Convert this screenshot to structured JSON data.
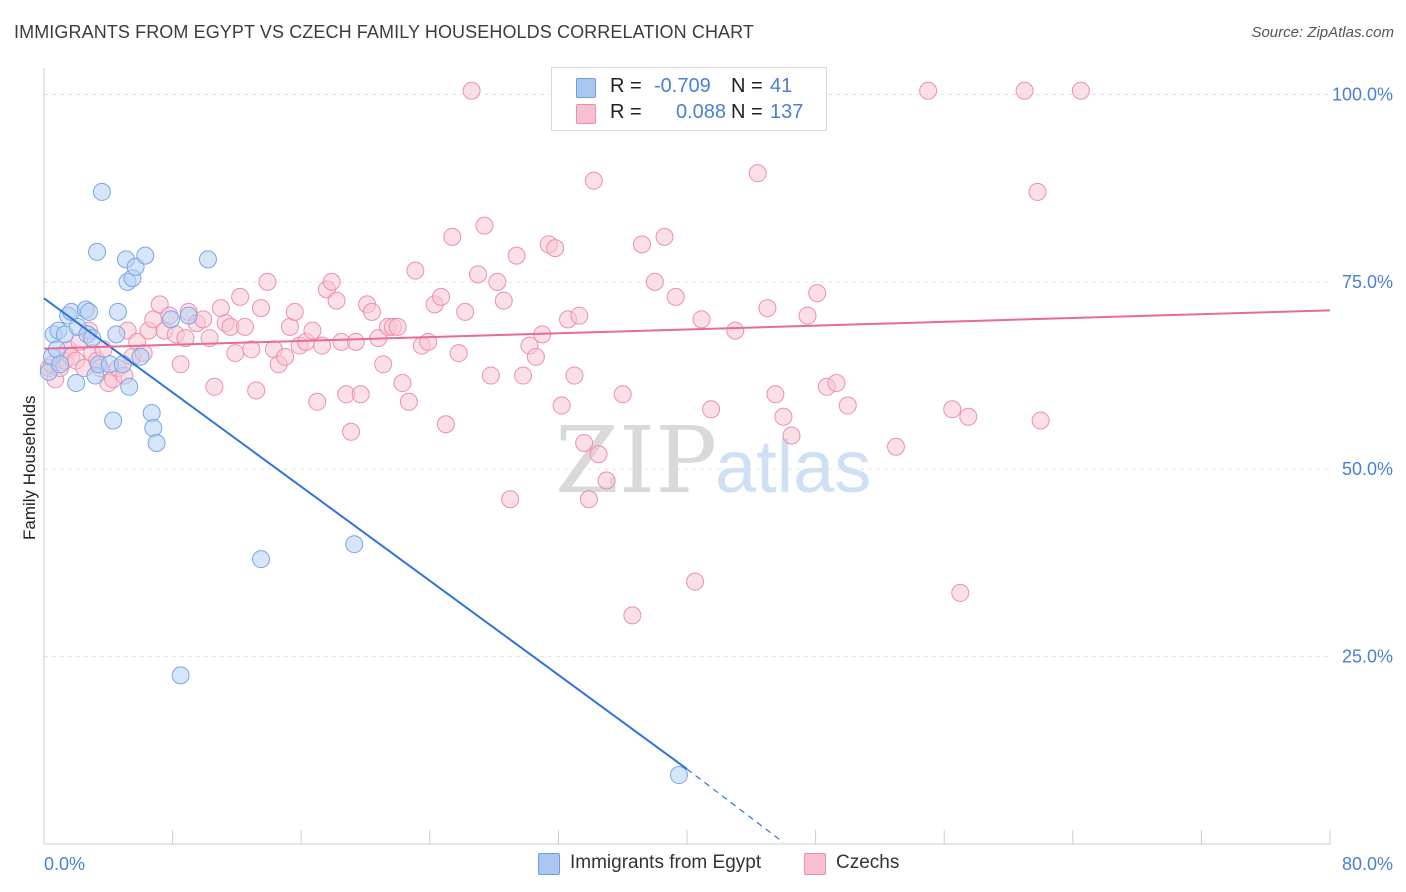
{
  "title": "IMMIGRANTS FROM EGYPT VS CZECH FAMILY HOUSEHOLDS CORRELATION CHART",
  "source": "Source: ZipAtlas.com",
  "watermark": {
    "zip": "ZIP",
    "atlas": "atlas"
  },
  "legend_top": {
    "rows": [
      {
        "r_label": "R =",
        "r_value": "-0.709",
        "n_label": "N =",
        "n_value": "41",
        "color": "#a9c6f0",
        "border": "#6f9ee0"
      },
      {
        "r_label": "R =",
        "r_value": "0.088",
        "n_label": "N =",
        "n_value": "137",
        "color": "#f7bfd0",
        "border": "#ec8fab"
      }
    ]
  },
  "legend_bottom": [
    {
      "label": "Immigrants from Egypt",
      "color": "#a9c6f0",
      "border": "#6f9ee0"
    },
    {
      "label": "Czechs",
      "color": "#f7bfd0",
      "border": "#ec8fab"
    }
  ],
  "chart_data": {
    "type": "scatter",
    "ylabel": "Family Households",
    "x_tick_labels": [
      "0.0%",
      "80.0%"
    ],
    "y_tick_labels": [
      "25.0%",
      "50.0%",
      "75.0%",
      "100.0%"
    ],
    "xlim": [
      0,
      80
    ],
    "ylim": [
      0,
      103
    ],
    "grid": true,
    "series": [
      {
        "name": "Immigrants from Egypt",
        "color": "#7aa7e6",
        "fill": "#b7d0f3",
        "line_color": "#2f74d8",
        "trend": {
          "x0": 0,
          "y0": 72.8,
          "x1": 40,
          "y1": 10.0,
          "dash_to_x": 46,
          "dash_to_y": 0.2
        },
        "points": [
          [
            0.3,
            63.0
          ],
          [
            0.5,
            65.0
          ],
          [
            0.6,
            68.0
          ],
          [
            0.8,
            66.0
          ],
          [
            0.9,
            68.5
          ],
          [
            1.0,
            64.0
          ],
          [
            1.3,
            68.0
          ],
          [
            1.5,
            70.5
          ],
          [
            1.7,
            71.0
          ],
          [
            2.0,
            61.5
          ],
          [
            2.1,
            69.0
          ],
          [
            2.6,
            71.3
          ],
          [
            2.7,
            68.0
          ],
          [
            2.8,
            71.0
          ],
          [
            3.0,
            67.5
          ],
          [
            3.2,
            62.5
          ],
          [
            3.3,
            79.0
          ],
          [
            3.4,
            64.0
          ],
          [
            3.6,
            87.0
          ],
          [
            4.1,
            64.0
          ],
          [
            4.3,
            56.5
          ],
          [
            4.5,
            68.0
          ],
          [
            4.6,
            71.0
          ],
          [
            4.9,
            64.0
          ],
          [
            5.1,
            78.0
          ],
          [
            5.2,
            75.0
          ],
          [
            5.3,
            61.0
          ],
          [
            5.5,
            75.5
          ],
          [
            5.7,
            77.0
          ],
          [
            6.0,
            65.0
          ],
          [
            6.3,
            78.5
          ],
          [
            6.7,
            57.5
          ],
          [
            6.8,
            55.5
          ],
          [
            7.0,
            53.5
          ],
          [
            7.9,
            70.0
          ],
          [
            8.5,
            22.5
          ],
          [
            9.0,
            70.5
          ],
          [
            10.2,
            78.0
          ],
          [
            13.5,
            38.0
          ],
          [
            19.3,
            40.0
          ],
          [
            39.5,
            9.2
          ]
        ]
      },
      {
        "name": "Czechs",
        "color": "#ec90ad",
        "fill": "#f8c4d4",
        "line_color": "#e76b96",
        "trend": {
          "x0": 0,
          "y0": 66.1,
          "x1": 80,
          "y1": 71.2
        },
        "points": [
          [
            0.3,
            63.5
          ],
          [
            0.5,
            64.0
          ],
          [
            0.7,
            62.0
          ],
          [
            1.0,
            63.5
          ],
          [
            1.3,
            64.5
          ],
          [
            1.5,
            66.0
          ],
          [
            1.7,
            65.0
          ],
          [
            2.0,
            64.5
          ],
          [
            2.2,
            67.0
          ],
          [
            2.5,
            63.5
          ],
          [
            2.8,
            68.5
          ],
          [
            3.0,
            65.5
          ],
          [
            3.3,
            64.5
          ],
          [
            3.5,
            63.5
          ],
          [
            3.7,
            66.0
          ],
          [
            4.0,
            61.5
          ],
          [
            4.3,
            62.0
          ],
          [
            4.6,
            63.5
          ],
          [
            5.0,
            62.5
          ],
          [
            5.2,
            68.5
          ],
          [
            5.5,
            65.0
          ],
          [
            5.8,
            67.0
          ],
          [
            6.2,
            65.5
          ],
          [
            6.5,
            68.5
          ],
          [
            6.8,
            70.0
          ],
          [
            7.2,
            72.0
          ],
          [
            7.5,
            68.5
          ],
          [
            7.8,
            70.5
          ],
          [
            8.2,
            68.0
          ],
          [
            8.5,
            64.0
          ],
          [
            8.8,
            67.5
          ],
          [
            9.0,
            71.0
          ],
          [
            9.5,
            69.5
          ],
          [
            9.9,
            70.0
          ],
          [
            10.3,
            67.5
          ],
          [
            10.6,
            61.0
          ],
          [
            11.0,
            71.5
          ],
          [
            11.3,
            69.5
          ],
          [
            11.6,
            69.0
          ],
          [
            11.9,
            65.5
          ],
          [
            12.2,
            73.0
          ],
          [
            12.5,
            69.0
          ],
          [
            12.9,
            66.0
          ],
          [
            13.2,
            60.5
          ],
          [
            13.5,
            71.5
          ],
          [
            13.9,
            75.0
          ],
          [
            14.3,
            66.0
          ],
          [
            14.6,
            64.0
          ],
          [
            15.0,
            65.0
          ],
          [
            15.3,
            69.0
          ],
          [
            15.6,
            71.0
          ],
          [
            15.9,
            66.5
          ],
          [
            16.3,
            67.0
          ],
          [
            16.7,
            68.5
          ],
          [
            17.0,
            59.0
          ],
          [
            17.3,
            66.5
          ],
          [
            17.6,
            74.0
          ],
          [
            17.9,
            75.0
          ],
          [
            18.2,
            72.5
          ],
          [
            18.5,
            67.0
          ],
          [
            18.8,
            60.0
          ],
          [
            19.1,
            55.0
          ],
          [
            19.4,
            67.0
          ],
          [
            19.7,
            60.0
          ],
          [
            20.1,
            72.0
          ],
          [
            20.4,
            71.0
          ],
          [
            20.8,
            67.5
          ],
          [
            21.1,
            64.0
          ],
          [
            21.4,
            69.0
          ],
          [
            21.7,
            69.0
          ],
          [
            22.0,
            69.0
          ],
          [
            22.3,
            61.5
          ],
          [
            22.7,
            59.0
          ],
          [
            23.1,
            76.5
          ],
          [
            23.5,
            66.5
          ],
          [
            23.9,
            67.0
          ],
          [
            24.3,
            72.0
          ],
          [
            24.7,
            73.0
          ],
          [
            25.0,
            56.0
          ],
          [
            25.4,
            81.0
          ],
          [
            25.8,
            65.5
          ],
          [
            26.2,
            71.0
          ],
          [
            26.6,
            100.5
          ],
          [
            27.0,
            76.0
          ],
          [
            27.4,
            82.5
          ],
          [
            27.8,
            62.5
          ],
          [
            28.2,
            75.0
          ],
          [
            28.6,
            72.5
          ],
          [
            29.0,
            46.0
          ],
          [
            29.4,
            78.5
          ],
          [
            29.8,
            62.5
          ],
          [
            30.2,
            66.5
          ],
          [
            30.6,
            65.0
          ],
          [
            31.0,
            68.0
          ],
          [
            31.4,
            80.0
          ],
          [
            31.8,
            79.5
          ],
          [
            32.2,
            58.5
          ],
          [
            32.6,
            70.0
          ],
          [
            33.0,
            62.5
          ],
          [
            33.3,
            70.5
          ],
          [
            33.6,
            53.5
          ],
          [
            33.9,
            46.0
          ],
          [
            34.2,
            88.5
          ],
          [
            34.5,
            52.0
          ],
          [
            35.0,
            48.5
          ],
          [
            36.0,
            60.0
          ],
          [
            36.6,
            30.5
          ],
          [
            37.2,
            80.0
          ],
          [
            38.0,
            75.0
          ],
          [
            38.6,
            81.0
          ],
          [
            39.3,
            73.0
          ],
          [
            40.0,
            101.0
          ],
          [
            40.5,
            35.0
          ],
          [
            40.9,
            70.0
          ],
          [
            41.5,
            58.0
          ],
          [
            43.0,
            68.5
          ],
          [
            44.4,
            89.5
          ],
          [
            45.0,
            71.5
          ],
          [
            45.5,
            60.0
          ],
          [
            46.0,
            57.0
          ],
          [
            46.5,
            54.5
          ],
          [
            47.5,
            70.5
          ],
          [
            48.1,
            73.5
          ],
          [
            48.7,
            61.0
          ],
          [
            49.3,
            61.5
          ],
          [
            50.0,
            58.5
          ],
          [
            53.0,
            53.0
          ],
          [
            55.0,
            100.5
          ],
          [
            56.5,
            58.0
          ],
          [
            57.0,
            33.5
          ],
          [
            57.5,
            57.0
          ],
          [
            61.0,
            100.5
          ],
          [
            61.8,
            87.0
          ],
          [
            62.0,
            56.5
          ],
          [
            64.5,
            100.5
          ]
        ]
      }
    ]
  }
}
